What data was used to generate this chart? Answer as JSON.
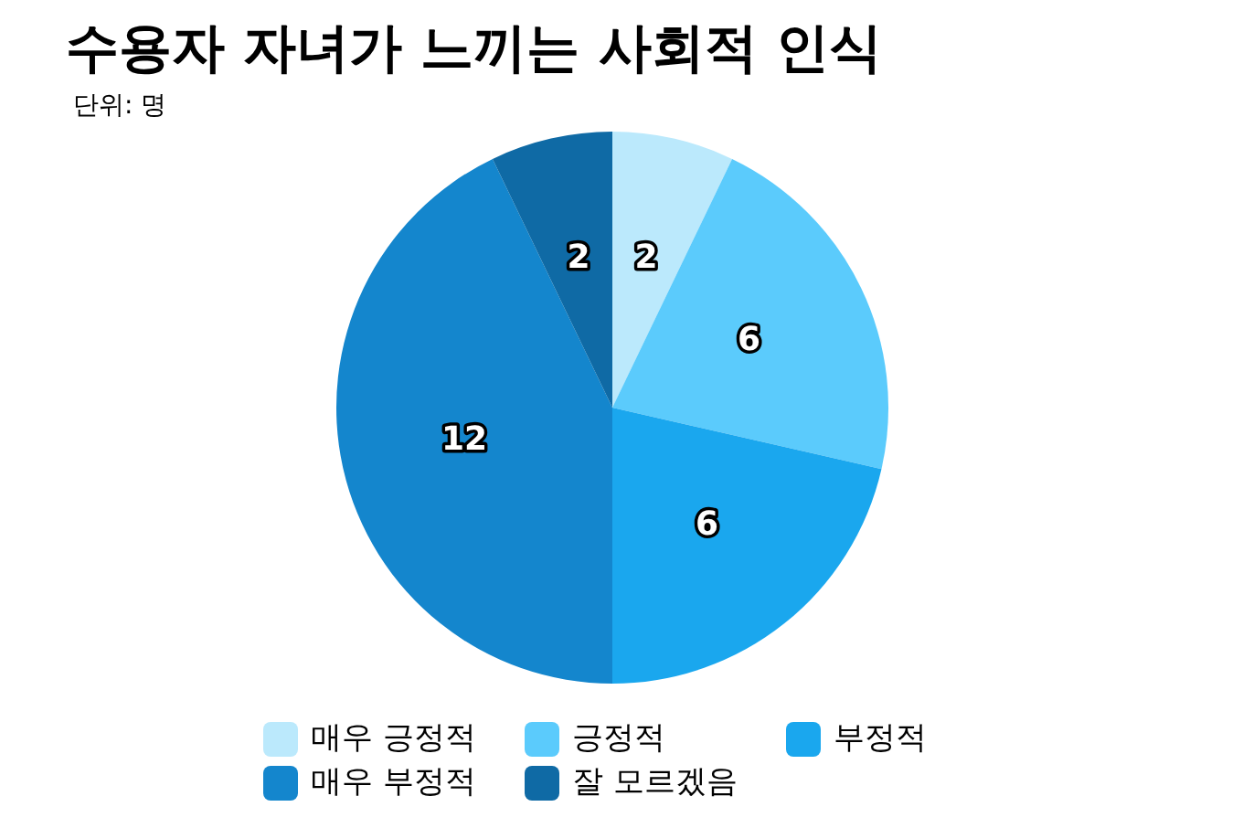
{
  "chart_data": {
    "type": "pie",
    "title": "수용자 자녀가 느끼는 사회적 인식",
    "subtitle": "단위: 명",
    "categories": [
      "매우 긍정적",
      "긍정적",
      "부정적",
      "매우 부정적",
      "잘 모르겠음"
    ],
    "values": [
      2,
      6,
      6,
      12,
      2
    ],
    "colors": [
      "#bbe9fc",
      "#5bcbfc",
      "#1aa7ee",
      "#1486cd",
      "#0f6aa5"
    ],
    "data_labels": true,
    "legend": "bottom"
  }
}
